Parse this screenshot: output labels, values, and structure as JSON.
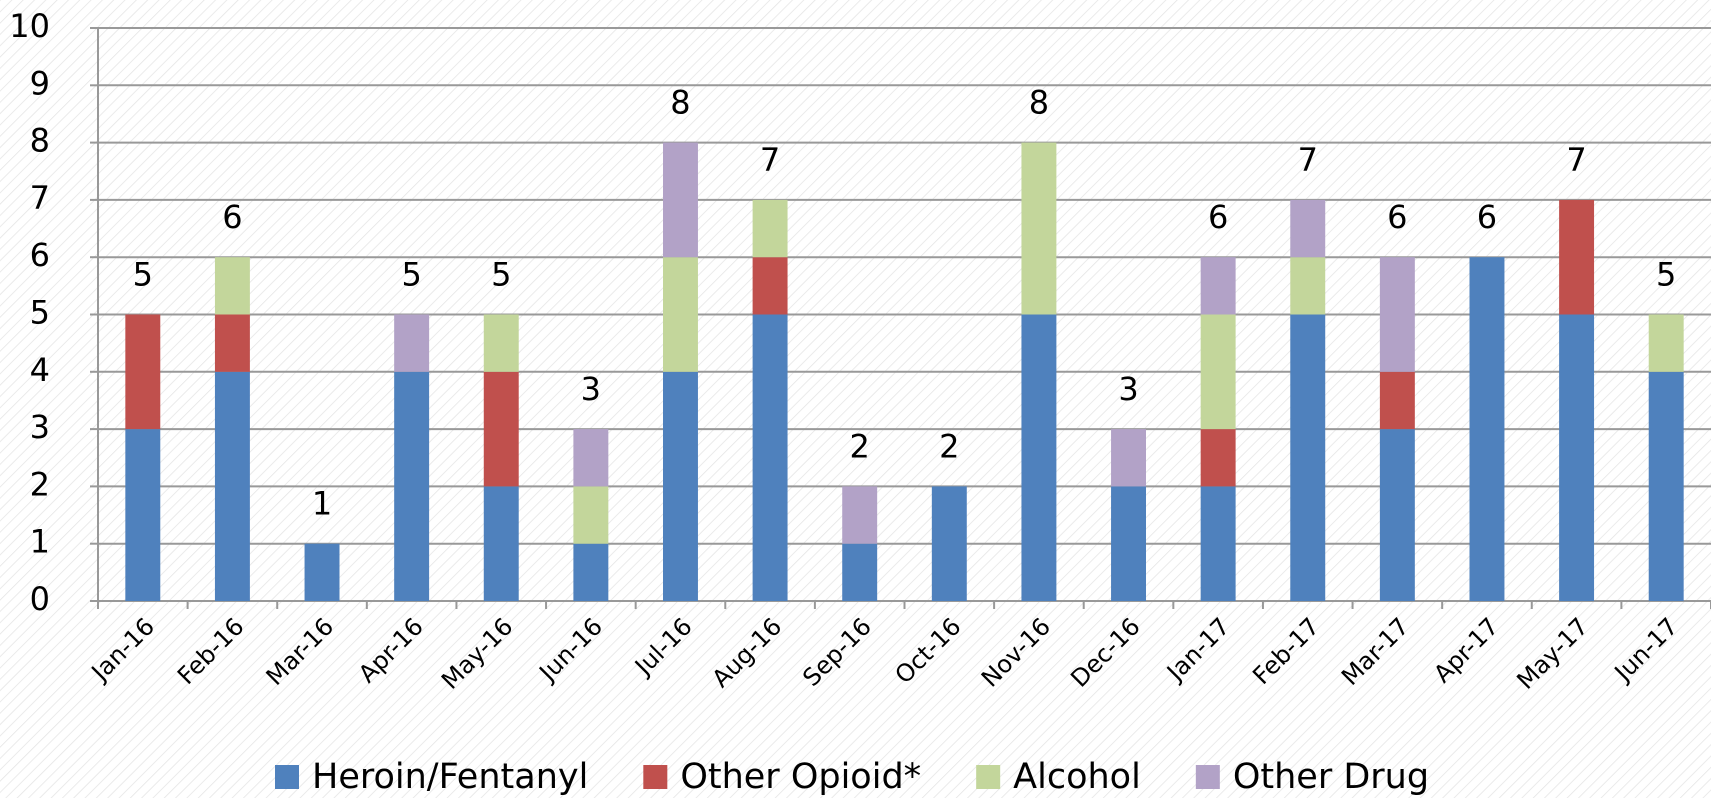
{
  "chart_data": {
    "type": "stacked-bar",
    "categories": [
      "Jan-16",
      "Feb-16",
      "Mar-16",
      "Apr-16",
      "May-16",
      "Jun-16",
      "Jul-16",
      "Aug-16",
      "Sep-16",
      "Oct-16",
      "Nov-16",
      "Dec-16",
      "Jan-17",
      "Feb-17",
      "Mar-17",
      "Apr-17",
      "May-17",
      "Jun-17"
    ],
    "series": [
      {
        "name": "Heroin/Fentanyl",
        "color": "#4f81bd",
        "values": [
          3,
          4,
          1,
          4,
          2,
          1,
          4,
          5,
          1,
          2,
          5,
          2,
          2,
          5,
          3,
          6,
          5,
          4
        ]
      },
      {
        "name": "Other Opioid*",
        "color": "#c0504d",
        "values": [
          2,
          1,
          0,
          0,
          2,
          0,
          0,
          1,
          0,
          0,
          0,
          0,
          1,
          0,
          1,
          0,
          2,
          0
        ]
      },
      {
        "name": "Alcohol",
        "color": "#c3d69b",
        "values": [
          0,
          1,
          0,
          0,
          1,
          1,
          2,
          1,
          0,
          0,
          3,
          0,
          2,
          1,
          0,
          0,
          0,
          1
        ]
      },
      {
        "name": "Other Drug",
        "color": "#b2a2c7",
        "values": [
          0,
          0,
          0,
          1,
          0,
          1,
          2,
          0,
          1,
          0,
          0,
          1,
          1,
          1,
          2,
          0,
          0,
          0
        ]
      }
    ],
    "totals": [
      5,
      6,
      1,
      5,
      5,
      3,
      8,
      7,
      2,
      2,
      8,
      3,
      6,
      7,
      6,
      6,
      7,
      5
    ],
    "ylim": [
      0,
      10
    ],
    "yticks": [
      0,
      1,
      2,
      3,
      4,
      5,
      6,
      7,
      8,
      9,
      10
    ],
    "grid": true,
    "legend": "bottom"
  }
}
